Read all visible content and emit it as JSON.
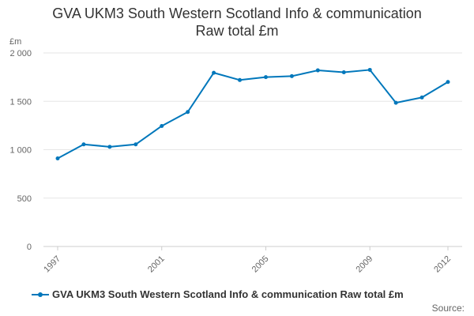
{
  "chart_data": {
    "type": "line",
    "title_line1": "GVA UKM3 South Western Scotland Info & communication",
    "title_line2": "Raw total £m",
    "ylabel": "£m",
    "xlabel": "",
    "ylim": [
      0,
      2000
    ],
    "yticks": [
      0,
      500,
      1000,
      1500,
      2000
    ],
    "ytick_labels": [
      "0",
      "500",
      "1 000",
      "1 500",
      "2 000"
    ],
    "xlim": [
      1997,
      2012
    ],
    "xticks": [
      1997,
      2001,
      2005,
      2009,
      2012
    ],
    "xtick_labels": [
      "1997",
      "2001",
      "2005",
      "2009",
      "2012"
    ],
    "grid": true,
    "legend_position": "bottom",
    "series": [
      {
        "name": "GVA UKM3 South Western Scotland Info & communication Raw total £m",
        "color": "#0077bb",
        "x": [
          1997,
          1998,
          1999,
          2000,
          2001,
          2002,
          2003,
          2004,
          2005,
          2006,
          2007,
          2008,
          2009,
          2010,
          2011,
          2012
        ],
        "values": [
          910,
          1055,
          1030,
          1055,
          1245,
          1390,
          1795,
          1720,
          1750,
          1760,
          1820,
          1800,
          1825,
          1485,
          1540,
          1700
        ]
      }
    ],
    "source_label": "Source:"
  }
}
